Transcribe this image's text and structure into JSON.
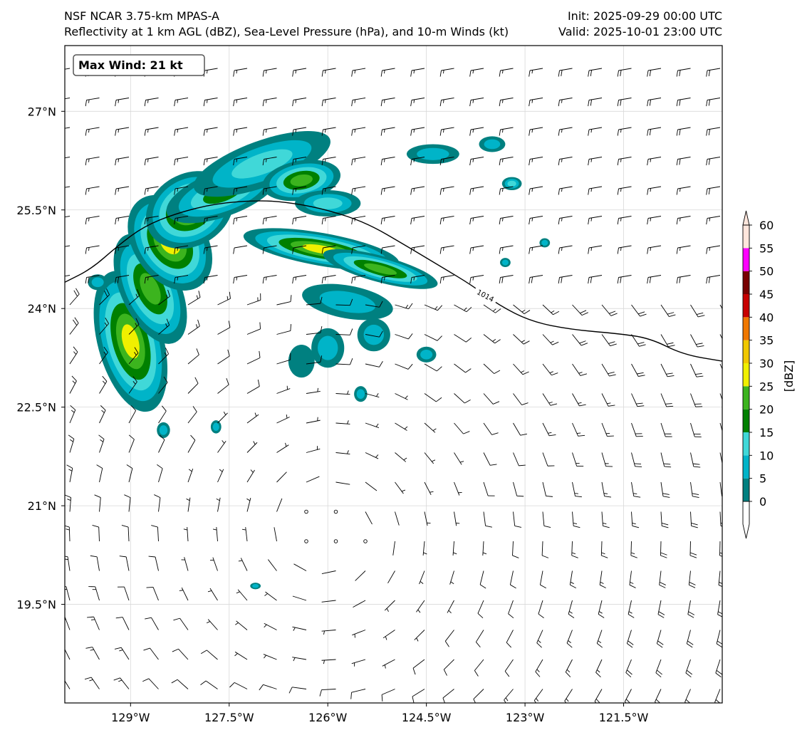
{
  "header": {
    "left_line1": "NSF NCAR 3.75-km MPAS-A",
    "left_line2": "Reflectivity at 1 km AGL (dBZ), Sea-Level Pressure (hPa), and 10-m Winds (kt)",
    "right_line1": "Init: 2025-09-29 00:00 UTC",
    "right_line2": "Valid: 2025-10-01 23:00 UTC"
  },
  "annotation": {
    "max_wind": "Max Wind: 21 kt"
  },
  "map": {
    "lon_range": [
      -130.0,
      -120.0
    ],
    "lat_range": [
      18.0,
      28.0
    ],
    "lon_ticks": [
      -129.0,
      -127.5,
      -126.0,
      -124.5,
      -123.0,
      -121.5
    ],
    "lat_ticks": [
      27.0,
      25.5,
      24.0,
      22.5,
      21.0,
      19.5
    ],
    "lon_labels": [
      "129°W",
      "127.5°W",
      "126°W",
      "124.5°W",
      "123°W",
      "121.5°W"
    ],
    "lat_labels": [
      "27°N",
      "25.5°N",
      "24°N",
      "22.5°N",
      "21°N",
      "19.5°N"
    ],
    "grid": true
  },
  "isobar": {
    "label": "1014",
    "label_point": [
      -123.6,
      24.2
    ],
    "points": [
      [
        -130.0,
        24.4
      ],
      [
        -129.6,
        24.6
      ],
      [
        -129.2,
        24.95
      ],
      [
        -128.8,
        25.25
      ],
      [
        -128.3,
        25.45
      ],
      [
        -127.7,
        25.6
      ],
      [
        -127.0,
        25.65
      ],
      [
        -126.5,
        25.6
      ],
      [
        -126.0,
        25.5
      ],
      [
        -125.4,
        25.3
      ],
      [
        -124.8,
        24.95
      ],
      [
        -124.3,
        24.65
      ],
      [
        -123.8,
        24.35
      ],
      [
        -123.4,
        24.05
      ],
      [
        -122.9,
        23.8
      ],
      [
        -122.3,
        23.68
      ],
      [
        -121.6,
        23.62
      ],
      [
        -121.1,
        23.55
      ],
      [
        -120.6,
        23.3
      ],
      [
        -120.0,
        23.2
      ]
    ]
  },
  "reflectivity": {
    "blobs": [
      {
        "c": [
          -129.0,
          23.5
        ],
        "rx": 0.5,
        "ry": 1.1,
        "rot": -15,
        "max": 30
      },
      {
        "c": [
          -128.7,
          24.3
        ],
        "rx": 0.45,
        "ry": 0.9,
        "rot": -25,
        "max": 25
      },
      {
        "c": [
          -128.4,
          25.0
        ],
        "rx": 0.55,
        "ry": 0.8,
        "rot": -35,
        "max": 30
      },
      {
        "c": [
          -128.1,
          25.5
        ],
        "rx": 0.7,
        "ry": 0.55,
        "rot": -30,
        "max": 30
      },
      {
        "c": [
          -127.6,
          25.75
        ],
        "rx": 0.9,
        "ry": 0.35,
        "rot": -20,
        "max": 20
      },
      {
        "c": [
          -127.0,
          26.2
        ],
        "rx": 1.1,
        "ry": 0.35,
        "rot": -20,
        "max": 15
      },
      {
        "c": [
          -126.4,
          25.95
        ],
        "rx": 0.6,
        "ry": 0.3,
        "rot": -10,
        "max": 25
      },
      {
        "c": [
          -126.0,
          25.6
        ],
        "rx": 0.5,
        "ry": 0.2,
        "rot": 0,
        "max": 15
      },
      {
        "c": [
          -126.1,
          24.9
        ],
        "rx": 1.2,
        "ry": 0.25,
        "rot": 10,
        "max": 30
      },
      {
        "c": [
          -125.2,
          24.6
        ],
        "rx": 0.9,
        "ry": 0.2,
        "rot": 15,
        "max": 25
      },
      {
        "c": [
          -125.7,
          24.1
        ],
        "rx": 0.7,
        "ry": 0.25,
        "rot": 10,
        "max": 10
      },
      {
        "c": [
          -126.0,
          23.4
        ],
        "rx": 0.25,
        "ry": 0.3,
        "rot": 0,
        "max": 10
      },
      {
        "c": [
          -125.3,
          23.6
        ],
        "rx": 0.25,
        "ry": 0.25,
        "rot": 0,
        "max": 10
      },
      {
        "c": [
          -126.4,
          23.2
        ],
        "rx": 0.2,
        "ry": 0.25,
        "rot": 0,
        "max": 5
      },
      {
        "c": [
          -124.4,
          26.35
        ],
        "rx": 0.4,
        "ry": 0.15,
        "rot": 0,
        "max": 10
      },
      {
        "c": [
          -123.5,
          26.5
        ],
        "rx": 0.2,
        "ry": 0.12,
        "rot": 0,
        "max": 10
      },
      {
        "c": [
          -123.2,
          25.9
        ],
        "rx": 0.15,
        "ry": 0.1,
        "rot": 0,
        "max": 15
      },
      {
        "c": [
          -127.7,
          22.2
        ],
        "rx": 0.08,
        "ry": 0.1,
        "rot": 0,
        "max": 10
      },
      {
        "c": [
          -128.5,
          22.15
        ],
        "rx": 0.1,
        "ry": 0.12,
        "rot": 0,
        "max": 10
      },
      {
        "c": [
          -127.1,
          19.78
        ],
        "rx": 0.08,
        "ry": 0.05,
        "rot": 0,
        "max": 10
      },
      {
        "c": [
          -125.5,
          22.7
        ],
        "rx": 0.1,
        "ry": 0.12,
        "rot": 0,
        "max": 10
      },
      {
        "c": [
          -124.5,
          23.3
        ],
        "rx": 0.15,
        "ry": 0.12,
        "rot": 0,
        "max": 10
      },
      {
        "c": [
          -122.7,
          25.0
        ],
        "rx": 0.08,
        "ry": 0.07,
        "rot": 0,
        "max": 10
      },
      {
        "c": [
          -123.3,
          24.7
        ],
        "rx": 0.08,
        "ry": 0.07,
        "rot": 0,
        "max": 10
      },
      {
        "c": [
          -129.5,
          24.4
        ],
        "rx": 0.15,
        "ry": 0.12,
        "rot": 0,
        "max": 10
      }
    ]
  },
  "winds": {
    "max_kt": 21,
    "circulation_center": [
      -126.0,
      20.6
    ]
  },
  "colorbar": {
    "label": "[dBZ]",
    "ticks": [
      "0",
      "5",
      "10",
      "15",
      "20",
      "25",
      "30",
      "35",
      "40",
      "45",
      "50",
      "55",
      "60"
    ],
    "levels": [
      0,
      5,
      10,
      15,
      20,
      25,
      30,
      35,
      40,
      45,
      50,
      55,
      60
    ],
    "colors": [
      "#008080",
      "#00b4c8",
      "#40d8d8",
      "#008000",
      "#3cb41e",
      "#f0f000",
      "#f0c800",
      "#f07800",
      "#c80000",
      "#780000",
      "#ff00ff",
      "#ffe6dc"
    ],
    "under_color": "#ffffff",
    "over_color": "#ffe6dc"
  }
}
